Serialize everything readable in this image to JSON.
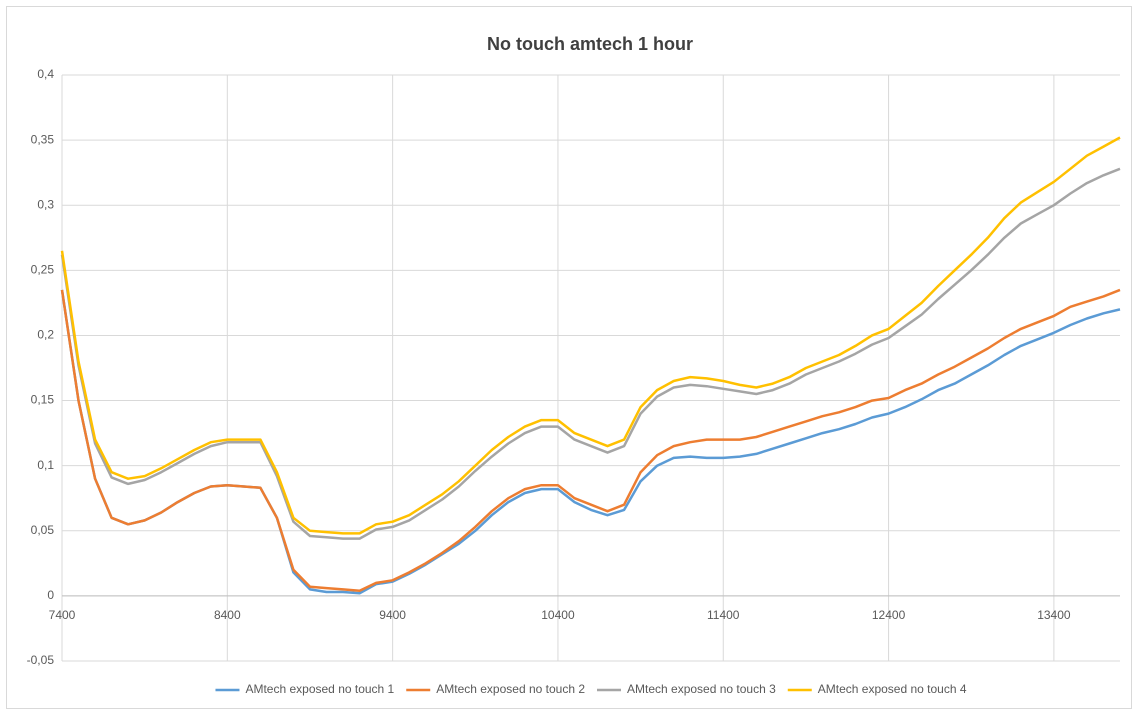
{
  "chart_data": {
    "type": "line",
    "title": "No touch amtech 1 hour",
    "x": [
      7400,
      7500,
      7600,
      7700,
      7800,
      7900,
      8000,
      8100,
      8200,
      8300,
      8400,
      8500,
      8600,
      8700,
      8800,
      8900,
      9000,
      9100,
      9200,
      9300,
      9400,
      9500,
      9600,
      9700,
      9800,
      9900,
      10000,
      10100,
      10200,
      10300,
      10400,
      10500,
      10600,
      10700,
      10800,
      10900,
      11000,
      11100,
      11200,
      11300,
      11400,
      11500,
      11600,
      11700,
      11800,
      11900,
      12000,
      12100,
      12200,
      12300,
      12400,
      12500,
      12600,
      12700,
      12800,
      12900,
      13000,
      13100,
      13200,
      13300,
      13400,
      13500,
      13600,
      13700,
      13800
    ],
    "series": [
      {
        "name": "AMtech exposed no touch 1",
        "color": "#5b9bd5",
        "values": [
          0.235,
          0.15,
          0.09,
          0.06,
          0.055,
          0.058,
          0.064,
          0.072,
          0.079,
          0.084,
          0.085,
          0.084,
          0.083,
          0.06,
          0.018,
          0.005,
          0.003,
          0.003,
          0.002,
          0.009,
          0.011,
          0.017,
          0.024,
          0.032,
          0.04,
          0.05,
          0.062,
          0.072,
          0.079,
          0.082,
          0.082,
          0.072,
          0.066,
          0.062,
          0.066,
          0.088,
          0.1,
          0.106,
          0.107,
          0.106,
          0.106,
          0.107,
          0.109,
          0.113,
          0.117,
          0.121,
          0.125,
          0.128,
          0.132,
          0.137,
          0.14,
          0.145,
          0.151,
          0.158,
          0.163,
          0.17,
          0.177,
          0.185,
          0.192,
          0.197,
          0.202,
          0.208,
          0.213,
          0.217,
          0.22
        ]
      },
      {
        "name": "AMtech exposed no touch 2",
        "color": "#ed7d31",
        "values": [
          0.235,
          0.15,
          0.09,
          0.06,
          0.055,
          0.058,
          0.064,
          0.072,
          0.079,
          0.084,
          0.085,
          0.084,
          0.083,
          0.06,
          0.02,
          0.007,
          0.006,
          0.005,
          0.004,
          0.01,
          0.012,
          0.018,
          0.025,
          0.033,
          0.042,
          0.053,
          0.065,
          0.075,
          0.082,
          0.085,
          0.085,
          0.075,
          0.07,
          0.065,
          0.07,
          0.095,
          0.108,
          0.115,
          0.118,
          0.12,
          0.12,
          0.12,
          0.122,
          0.126,
          0.13,
          0.134,
          0.138,
          0.141,
          0.145,
          0.15,
          0.152,
          0.158,
          0.163,
          0.17,
          0.176,
          0.183,
          0.19,
          0.198,
          0.205,
          0.21,
          0.215,
          0.222,
          0.226,
          0.23,
          0.235
        ]
      },
      {
        "name": "AMtech exposed no touch 3",
        "color": "#a5a5a5",
        "values": [
          0.262,
          0.177,
          0.117,
          0.091,
          0.086,
          0.089,
          0.095,
          0.102,
          0.109,
          0.115,
          0.118,
          0.118,
          0.118,
          0.092,
          0.057,
          0.046,
          0.045,
          0.044,
          0.044,
          0.051,
          0.053,
          0.058,
          0.066,
          0.074,
          0.084,
          0.096,
          0.107,
          0.117,
          0.125,
          0.13,
          0.13,
          0.12,
          0.115,
          0.11,
          0.115,
          0.14,
          0.153,
          0.16,
          0.162,
          0.161,
          0.159,
          0.157,
          0.155,
          0.158,
          0.163,
          0.17,
          0.175,
          0.18,
          0.186,
          0.193,
          0.198,
          0.207,
          0.216,
          0.228,
          0.239,
          0.25,
          0.262,
          0.275,
          0.286,
          0.293,
          0.3,
          0.309,
          0.317,
          0.323,
          0.328
        ]
      },
      {
        "name": "AMtech exposed no touch 4",
        "color": "#ffc000",
        "values": [
          0.265,
          0.18,
          0.12,
          0.095,
          0.09,
          0.092,
          0.098,
          0.105,
          0.112,
          0.118,
          0.12,
          0.12,
          0.12,
          0.095,
          0.06,
          0.05,
          0.049,
          0.048,
          0.048,
          0.055,
          0.057,
          0.062,
          0.07,
          0.078,
          0.088,
          0.1,
          0.112,
          0.122,
          0.13,
          0.135,
          0.135,
          0.125,
          0.12,
          0.115,
          0.12,
          0.145,
          0.158,
          0.165,
          0.168,
          0.167,
          0.165,
          0.162,
          0.16,
          0.163,
          0.168,
          0.175,
          0.18,
          0.185,
          0.192,
          0.2,
          0.205,
          0.215,
          0.225,
          0.238,
          0.25,
          0.262,
          0.275,
          0.29,
          0.302,
          0.31,
          0.318,
          0.328,
          0.338,
          0.345,
          0.352
        ]
      }
    ],
    "xlim": [
      7400,
      13800
    ],
    "xticks": [
      7400,
      8400,
      9400,
      10400,
      11400,
      12400,
      13400
    ],
    "ylim": [
      -0.05,
      0.4
    ],
    "yticks": [
      {
        "value": -0.05,
        "label": "-0,05"
      },
      0,
      {
        "value": 0.05,
        "label": "0,05"
      },
      {
        "value": 0.1,
        "label": "0,1"
      },
      {
        "value": 0.15,
        "label": "0,15"
      },
      {
        "value": 0.2,
        "label": "0,2"
      },
      {
        "value": 0.25,
        "label": "0,25"
      },
      {
        "value": 0.3,
        "label": "0,3"
      },
      {
        "value": 0.35,
        "label": "0,35"
      },
      {
        "value": 0.4,
        "label": "0,4"
      }
    ],
    "grid": true,
    "legend": "bottom"
  }
}
